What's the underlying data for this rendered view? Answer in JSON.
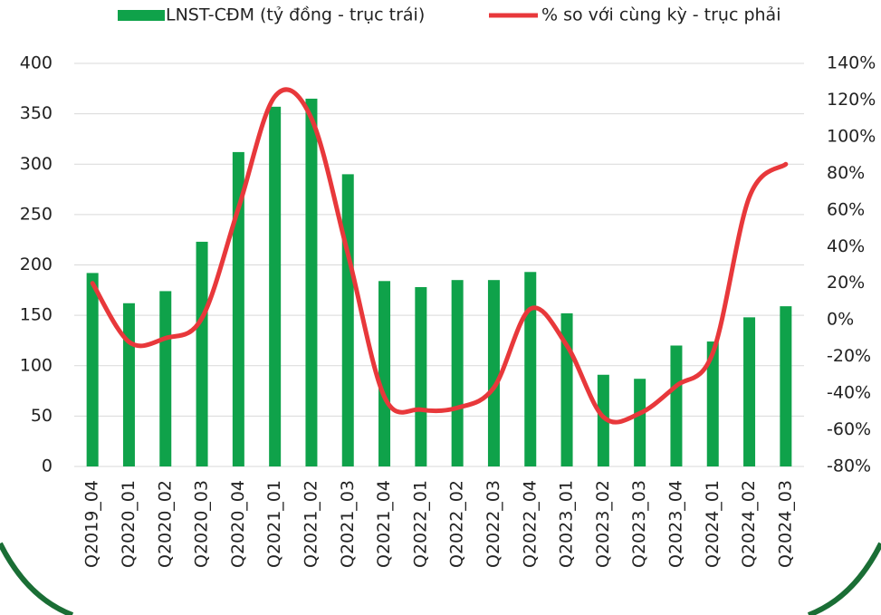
{
  "chart_data": {
    "type": "bar_line",
    "categories": [
      "Q2019_04",
      "Q2020_01",
      "Q2020_02",
      "Q2020_03",
      "Q2020_04",
      "Q2021_01",
      "Q2021_02",
      "Q2021_03",
      "Q2021_04",
      "Q2022_01",
      "Q2022_02",
      "Q2022_03",
      "Q2022_04",
      "Q2023_01",
      "Q2023_02",
      "Q2023_03",
      "Q2023_04",
      "Q2024_01",
      "Q2024_02",
      "Q2024_03"
    ],
    "series": [
      {
        "name": "LNST-CĐM (tỷ đồng - trục trái)",
        "color": "#0fa24a",
        "type": "bar",
        "values": [
          192,
          162,
          174,
          223,
          312,
          357,
          365,
          290,
          184,
          178,
          185,
          185,
          193,
          152,
          91,
          87,
          120,
          124,
          148,
          159
        ]
      },
      {
        "name": "% so với cùng kỳ - trục phải",
        "color": "#e8383b",
        "type": "line",
        "axis": "y2",
        "values": [
          20,
          -12,
          -10,
          1,
          61,
          122,
          110,
          36,
          -42,
          -49,
          -48,
          -37,
          6,
          -14,
          -53,
          -51,
          -36,
          -18,
          67,
          85
        ]
      }
    ],
    "ylim": [
      0,
      400
    ],
    "yticks": [
      0,
      50,
      100,
      150,
      200,
      250,
      300,
      350,
      400
    ],
    "y2lim": [
      -80,
      140
    ],
    "y2ticks": [
      {
        "value": -80,
        "label": "-80%"
      },
      {
        "value": -60,
        "label": "-60%"
      },
      {
        "value": -40,
        "label": "-40%"
      },
      {
        "value": -20,
        "label": "-20%"
      },
      {
        "value": 0,
        "label": "0%"
      },
      {
        "value": 20,
        "label": "20%"
      },
      {
        "value": 40,
        "label": "40%"
      },
      {
        "value": 60,
        "label": "60%"
      },
      {
        "value": 80,
        "label": "80%"
      },
      {
        "value": 100,
        "label": "100%"
      },
      {
        "value": 120,
        "label": "120%"
      },
      {
        "value": 140,
        "label": "140%"
      }
    ],
    "grid": true
  }
}
